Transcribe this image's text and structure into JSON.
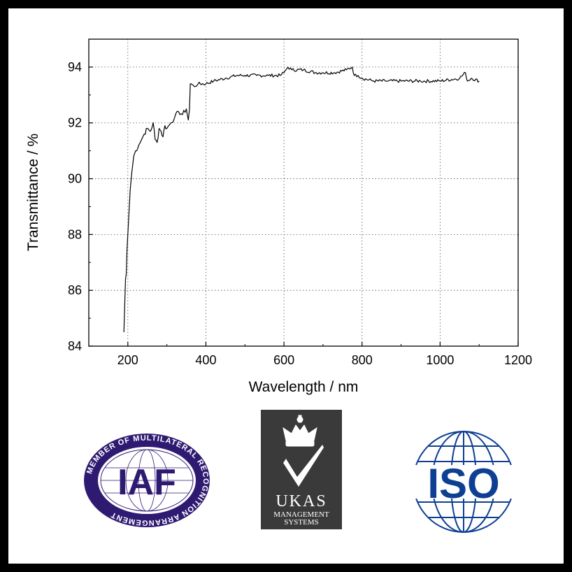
{
  "chart_data": {
    "type": "line",
    "xlabel": "Wavelength / nm",
    "ylabel": "Transmittance / %",
    "xlim": [
      100,
      1200
    ],
    "ylim": [
      84,
      95
    ],
    "xticks": [
      200,
      400,
      600,
      800,
      1000,
      1200
    ],
    "yticks": [
      84,
      86,
      88,
      90,
      92,
      94
    ],
    "grid": true,
    "grid_style": "dotted",
    "series": [
      {
        "color": "#000000",
        "x": [
          190,
          192,
          194,
          196,
          198,
          200,
          203,
          206,
          210,
          215,
          220,
          228,
          235,
          242,
          250,
          258,
          265,
          270,
          275,
          280,
          285,
          290,
          295,
          300,
          310,
          320,
          330,
          340,
          350,
          355,
          358,
          360,
          362,
          370,
          380,
          400,
          420,
          450,
          480,
          500,
          530,
          560,
          590,
          600,
          605,
          610,
          620,
          650,
          680,
          700,
          730,
          760,
          775,
          780,
          790,
          800,
          830,
          860,
          900,
          950,
          1000,
          1050,
          1065,
          1070,
          1080,
          1100
        ],
        "y": [
          84.5,
          85.5,
          86.4,
          86.6,
          87.5,
          88.0,
          88.8,
          89.6,
          90.2,
          90.8,
          91.0,
          91.2,
          91.4,
          91.6,
          91.8,
          91.7,
          92.0,
          91.4,
          91.3,
          91.8,
          91.7,
          91.5,
          91.9,
          91.8,
          92.0,
          92.2,
          92.4,
          92.3,
          92.5,
          92.1,
          92.5,
          93.4,
          93.4,
          93.3,
          93.4,
          93.4,
          93.5,
          93.6,
          93.7,
          93.7,
          93.7,
          93.7,
          93.7,
          93.8,
          93.9,
          94.0,
          93.9,
          93.9,
          93.8,
          93.8,
          93.8,
          93.9,
          94.0,
          93.7,
          93.7,
          93.6,
          93.5,
          93.5,
          93.5,
          93.5,
          93.5,
          93.6,
          93.8,
          93.5,
          93.6,
          93.5
        ]
      }
    ]
  },
  "logos": [
    {
      "name": "IAF",
      "ring_text": "MEMBER OF MULTILATERAL RECOGNITION ARRANGEMENT",
      "mark": "IAF",
      "colors": {
        "primary": "#2f1a72",
        "light": "#ffffff"
      }
    },
    {
      "name": "UKAS",
      "mark": "UKAS",
      "subtitle_line1": "MANAGEMENT",
      "subtitle_line2": "SYSTEMS",
      "colors": {
        "background": "#3a3a3a",
        "light": "#ffffff"
      }
    },
    {
      "name": "ISO",
      "mark": "ISO",
      "colors": {
        "primary": "#0e3f93",
        "light": "#ffffff"
      }
    }
  ]
}
